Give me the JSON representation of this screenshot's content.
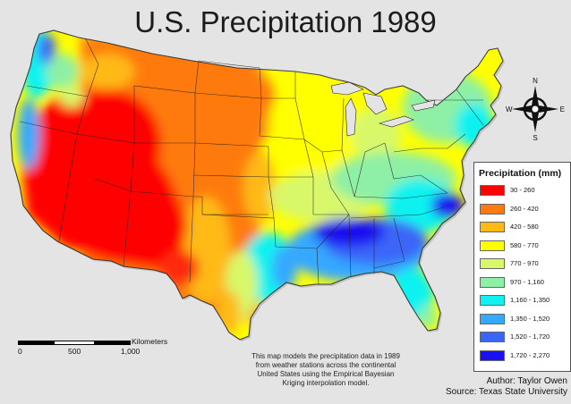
{
  "title": "U.S. Precipitation 1989",
  "legend": {
    "title": "Precipitation (mm)",
    "classes": [
      {
        "label": "30 - 260",
        "color": "#ff0000"
      },
      {
        "label": "260 - 420",
        "color": "#ff7a10"
      },
      {
        "label": "420 - 580",
        "color": "#ffba16"
      },
      {
        "label": "580 - 770",
        "color": "#ffff00"
      },
      {
        "label": "770 - 970",
        "color": "#d8f86a"
      },
      {
        "label": "970 - 1,160",
        "color": "#8ef0a4"
      },
      {
        "label": "1,160 - 1,350",
        "color": "#10f2f0"
      },
      {
        "label": "1,350 - 1,520",
        "color": "#35a8ff"
      },
      {
        "label": "1,520 - 1,720",
        "color": "#3a66f8"
      },
      {
        "label": "1,720 - 2,270",
        "color": "#1a10f0"
      }
    ]
  },
  "scale_bar": {
    "unit": "Kilometers",
    "ticks": [
      "0",
      "500",
      "1,000"
    ]
  },
  "compass": {
    "n": "N",
    "s": "S",
    "e": "E",
    "w": "W"
  },
  "note": "This map models the precipitation data in 1989 from weather stations across the continental United States using the Empirical Bayesian Kriging interpolation model.",
  "credits": {
    "author": "Author: Taylor Owen",
    "source": "Source: Texas State University"
  }
}
